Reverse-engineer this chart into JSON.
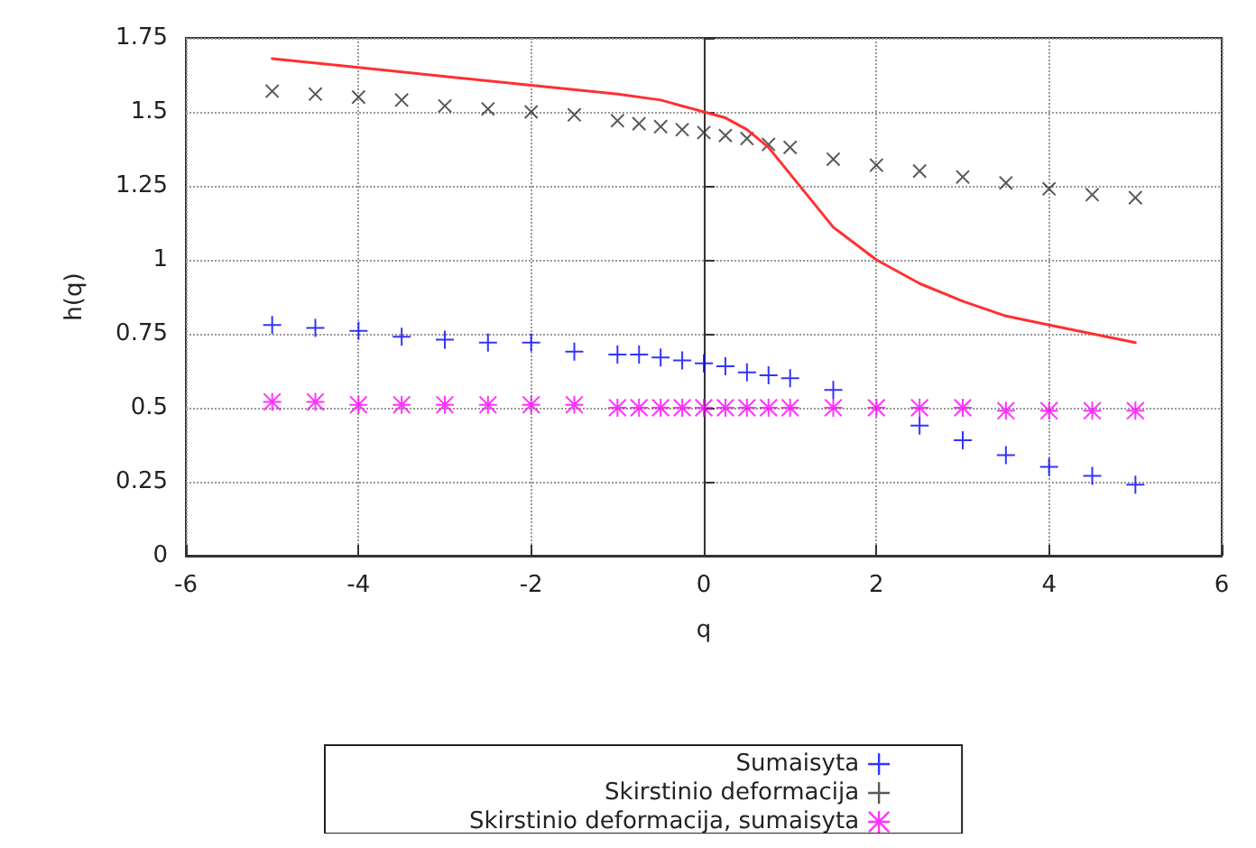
{
  "chart_data": {
    "type": "scatter",
    "xlabel": "q",
    "ylabel": "h(q)",
    "xlim": [
      -6,
      6
    ],
    "xticks": [
      -6,
      -4,
      -2,
      0,
      2,
      4,
      6
    ],
    "ylim": [
      0,
      1.75
    ],
    "yticks": [
      0,
      0.25,
      0.5,
      0.75,
      1,
      1.25,
      1.5,
      1.75
    ],
    "grid": true,
    "legend": "bottom",
    "series": [
      {
        "name": "Sumaisyta",
        "color": "#0000ff",
        "marker": "cross",
        "x": [
          -5,
          -4.5,
          -4,
          -3.5,
          -3,
          -2.5,
          -2,
          -1.5,
          -1,
          -0.75,
          -0.5,
          -0.25,
          0,
          0.25,
          0.5,
          0.75,
          1,
          1.5,
          2,
          2.5,
          3,
          3.5,
          4,
          4.5,
          5
        ],
        "values": [
          0.78,
          0.77,
          0.76,
          0.74,
          0.73,
          0.72,
          0.72,
          0.69,
          0.68,
          0.68,
          0.67,
          0.66,
          0.65,
          0.64,
          0.62,
          0.61,
          0.6,
          0.56,
          null,
          0.44,
          0.39,
          0.34,
          0.3,
          0.27,
          0.24
        ]
      },
      {
        "name": "Skirstinio deformacija",
        "color": "#303030",
        "marker": "x",
        "x": [
          -5,
          -4.5,
          -4,
          -3.5,
          -3,
          -2.5,
          -2,
          -1.5,
          -1,
          -0.75,
          -0.5,
          -0.25,
          0,
          0.25,
          0.5,
          0.75,
          1,
          1.5,
          2,
          2.5,
          3,
          3.5,
          4,
          4.5,
          5
        ],
        "values": [
          1.57,
          1.56,
          1.55,
          1.54,
          1.52,
          1.51,
          1.5,
          1.49,
          1.47,
          1.46,
          1.45,
          1.44,
          1.43,
          1.42,
          1.41,
          1.39,
          1.38,
          1.34,
          1.32,
          1.3,
          1.28,
          1.26,
          1.24,
          1.22,
          1.21
        ]
      },
      {
        "name": "Skirstinio deformacija, sumaisyta",
        "color": "#ff00ff",
        "marker": "star",
        "x": [
          -5,
          -4.5,
          -4,
          -3.5,
          -3,
          -2.5,
          -2,
          -1.5,
          -1,
          -0.75,
          -0.5,
          -0.25,
          0,
          0.25,
          0.5,
          0.75,
          1,
          1.5,
          2,
          2.5,
          3,
          3.5,
          4,
          4.5,
          5
        ],
        "values": [
          0.52,
          0.52,
          0.51,
          0.51,
          0.51,
          0.51,
          0.51,
          0.51,
          0.5,
          0.5,
          0.5,
          0.5,
          0.5,
          0.5,
          0.5,
          0.5,
          0.5,
          0.5,
          0.5,
          0.5,
          0.5,
          0.49,
          0.49,
          0.49,
          0.49
        ]
      },
      {
        "type": "line",
        "color": "#ff3030",
        "marker": "none",
        "x": [
          -5,
          -4,
          -2,
          -1,
          -0.5,
          -0.25,
          0,
          0.25,
          0.5,
          0.75,
          1,
          1.5,
          2,
          2.5,
          3,
          3.5,
          4,
          4.5,
          5
        ],
        "values": [
          1.68,
          1.65,
          1.59,
          1.56,
          1.54,
          1.52,
          1.5,
          1.48,
          1.44,
          1.38,
          1.29,
          1.11,
          1.0,
          0.92,
          0.86,
          0.81,
          0.78,
          0.75,
          0.72
        ]
      }
    ]
  }
}
